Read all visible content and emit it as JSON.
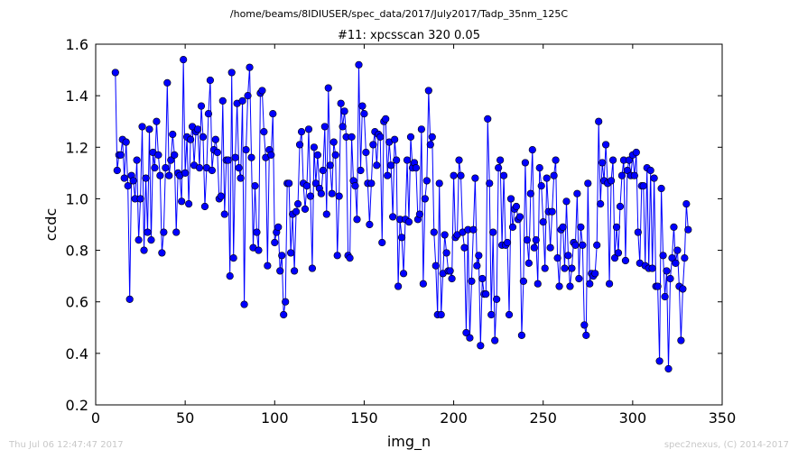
{
  "suptitle": "/home/beams/8IDIUSER/spec_data/2017/July2017/Tadp_35nm_125C",
  "footer": {
    "timestamp": "Thu Jul 06 12:47:47 2017",
    "credit": "spec2nexus, (C) 2014-2017"
  },
  "colors": {
    "line": "#0000ff",
    "marker": "#0000ff",
    "marker_edge": "#000000"
  },
  "chart_data": {
    "type": "line",
    "title": "#11: xpcsscan 320 0.05",
    "xlabel": "img_n",
    "ylabel": "ccdc",
    "xlim": [
      0,
      350
    ],
    "ylim": [
      0.2,
      1.6
    ],
    "xticks": [
      "0",
      "50",
      "100",
      "150",
      "200",
      "250",
      "300",
      "350"
    ],
    "yticks": [
      "0.2",
      "0.4",
      "0.6",
      "0.8",
      "1.0",
      "1.2",
      "1.4",
      "1.6"
    ],
    "grid": false,
    "marker": "circle",
    "series": [
      {
        "x_start": 11,
        "y": [
          1.49,
          1.11,
          1.17,
          1.17,
          1.23,
          1.08,
          1.22,
          1.05,
          0.61,
          1.09,
          1.07,
          1.0,
          1.15,
          0.84,
          1.0,
          1.28,
          0.8,
          1.08,
          0.87,
          1.27,
          0.84,
          1.18,
          1.12,
          1.3,
          1.17,
          1.09,
          0.79,
          0.87,
          1.12,
          1.45,
          1.09,
          1.15,
          1.25,
          1.17,
          0.87,
          1.1,
          1.09,
          0.99,
          1.54,
          1.1,
          1.24,
          0.98,
          1.23,
          1.28,
          1.13,
          1.26,
          1.27,
          1.12,
          1.36,
          1.24,
          0.97,
          1.12,
          1.33,
          1.46,
          1.11,
          1.19,
          1.23,
          1.18,
          1.0,
          1.01,
          1.38,
          0.94,
          1.15,
          1.15,
          0.7,
          1.49,
          0.77,
          1.16,
          1.37,
          1.12,
          1.08,
          1.38,
          0.59,
          1.19,
          1.4,
          1.51,
          1.16,
          0.81,
          1.05,
          0.87,
          0.8,
          1.41,
          1.42,
          1.26,
          1.16,
          0.74,
          1.19,
          1.17,
          1.33,
          0.83,
          0.87,
          0.89,
          0.72,
          0.78,
          0.55,
          0.6,
          1.06,
          1.06,
          0.79,
          0.94,
          0.72,
          0.95,
          0.98,
          1.21,
          1.26,
          1.06,
          0.96,
          1.05,
          1.27,
          1.01,
          0.73,
          1.2,
          1.06,
          1.17,
          1.04,
          1.02,
          1.11,
          1.28,
          0.94,
          1.43,
          1.13,
          1.02,
          1.22,
          1.17,
          0.78,
          1.01,
          1.37,
          1.28,
          1.34,
          1.24,
          0.78,
          0.77,
          1.24,
          1.07,
          1.05,
          0.92,
          1.52,
          1.11,
          1.36,
          1.33,
          1.18,
          1.06,
          0.9,
          1.06,
          1.21,
          1.26,
          1.13,
          1.25,
          1.24,
          0.83,
          1.3,
          1.31,
          1.09,
          1.22,
          1.13,
          0.93,
          1.23,
          1.15,
          0.66,
          0.92,
          0.85,
          0.71,
          0.92,
          1.15,
          0.91,
          1.24,
          1.12,
          1.14,
          1.12,
          0.92,
          0.94,
          1.27,
          0.67,
          1.0,
          1.07,
          1.42,
          1.21,
          1.24,
          0.87,
          0.74,
          0.55,
          1.06,
          0.55,
          0.71,
          0.86,
          0.79,
          0.72,
          0.72,
          0.69,
          1.09,
          0.85,
          0.86,
          1.15,
          1.09,
          0.87,
          0.81,
          0.48,
          0.88,
          0.46,
          0.68,
          0.88,
          1.08,
          0.74,
          0.78,
          0.43,
          0.69,
          0.63,
          0.63,
          1.31,
          1.06,
          0.55,
          0.87,
          0.45,
          0.61,
          1.12,
          1.15,
          0.82,
          1.09,
          0.82,
          0.83,
          0.55,
          1.0,
          0.89,
          0.96,
          0.97,
          0.92,
          0.93,
          0.47,
          0.68,
          1.14,
          0.84,
          0.75,
          1.02,
          1.19,
          0.81,
          0.84,
          0.67,
          1.12,
          1.05,
          0.91,
          0.73,
          1.08,
          0.95,
          0.81,
          0.95,
          1.09,
          1.15,
          0.77,
          0.66,
          0.88,
          0.89,
          0.73,
          0.99,
          0.78,
          0.66,
          0.73,
          0.83,
          0.82,
          1.02,
          0.69,
          0.89,
          0.82,
          0.51,
          0.47,
          1.06,
          0.67,
          0.71,
          0.7,
          0.71,
          0.82,
          1.3,
          0.98,
          1.14,
          1.07,
          1.21,
          1.06,
          0.67,
          1.07,
          1.15,
          0.77,
          0.89,
          0.79,
          0.97,
          1.09,
          1.15,
          0.76,
          1.11,
          1.15,
          1.09,
          1.17,
          1.09,
          1.18,
          0.87,
          0.75,
          1.05,
          1.05,
          0.74,
          1.12,
          0.73,
          1.11,
          0.73,
          1.08,
          0.66,
          0.66,
          0.37,
          1.04,
          0.78,
          0.62,
          0.72,
          0.34,
          0.69,
          0.77,
          0.89,
          0.75,
          0.8,
          0.66,
          0.45,
          0.65,
          0.77,
          0.98,
          0.88
        ]
      }
    ]
  }
}
